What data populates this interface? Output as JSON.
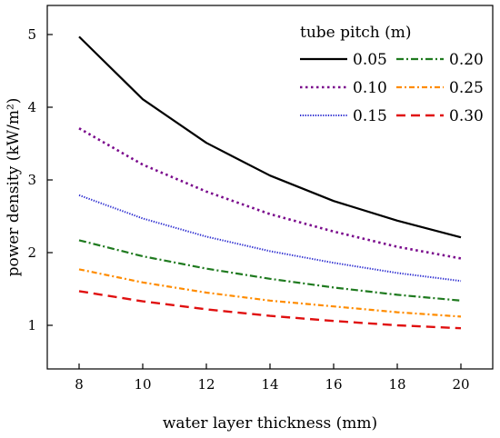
{
  "chart_data": {
    "type": "line",
    "xlabel": "water layer thickness (mm)",
    "ylabel": "power density (kW/m²)",
    "xlim": [
      7,
      21
    ],
    "ylim": [
      0.4,
      5.4
    ],
    "xticks": [
      8,
      10,
      12,
      14,
      16,
      18,
      20
    ],
    "yticks": [
      1,
      2,
      3,
      4,
      5
    ],
    "grid": false,
    "legend": {
      "title": "tube pitch (m)",
      "placement": "top-right",
      "columns": 2
    },
    "x": [
      8,
      10,
      12,
      14,
      16,
      18,
      20
    ],
    "series": [
      {
        "name": "0.05",
        "color": "#000000",
        "dash": "solid",
        "values": [
          4.97,
          4.11,
          3.51,
          3.06,
          2.71,
          2.44,
          2.21
        ]
      },
      {
        "name": "0.10",
        "color": "#7a0a8c",
        "dash": "dot",
        "values": [
          3.71,
          3.21,
          2.84,
          2.53,
          2.29,
          2.08,
          1.92
        ]
      },
      {
        "name": "0.15",
        "color": "#2c2cd0",
        "dash": "fine-dot",
        "values": [
          2.79,
          2.47,
          2.22,
          2.02,
          1.86,
          1.72,
          1.61
        ]
      },
      {
        "name": "0.20",
        "color": "#1f7a1f",
        "dash": "dash-dot",
        "values": [
          2.17,
          1.95,
          1.78,
          1.64,
          1.52,
          1.42,
          1.34
        ]
      },
      {
        "name": "0.25",
        "color": "#ff8c00",
        "dash": "dash-dot-short",
        "values": [
          1.77,
          1.59,
          1.45,
          1.34,
          1.26,
          1.18,
          1.12
        ]
      },
      {
        "name": "0.30",
        "color": "#e01010",
        "dash": "dash",
        "values": [
          1.47,
          1.33,
          1.22,
          1.13,
          1.06,
          1.0,
          0.96
        ]
      }
    ]
  }
}
